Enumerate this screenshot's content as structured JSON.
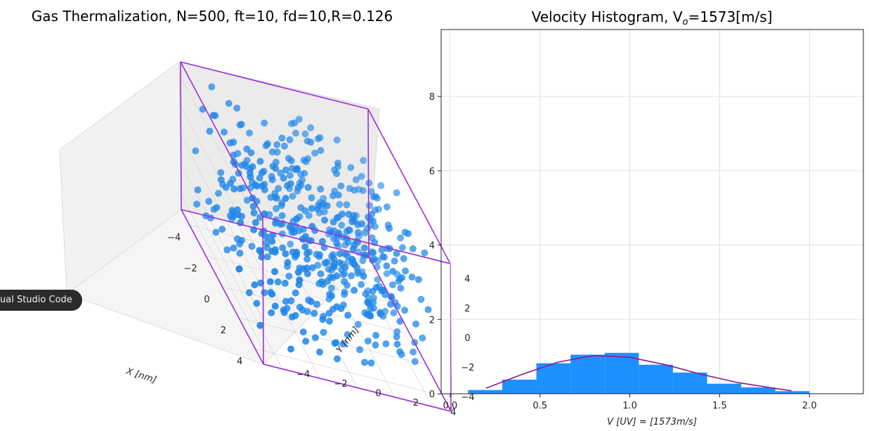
{
  "chart_data": [
    {
      "type": "scatter",
      "title": "Gas Thermalization, N=500, ft=10, fd=10,R=0.126",
      "xlabel": "X [nm]",
      "ylabel": "Y [nm]",
      "zlabel": "",
      "xlim": [
        -5,
        5
      ],
      "ylim": [
        -5,
        5
      ],
      "zlim": [
        -5,
        5
      ],
      "x_ticks": [
        "−4",
        "−2",
        "0",
        "2",
        "4"
      ],
      "y_ticks": [
        "−4",
        "−2",
        "0",
        "2",
        "4"
      ],
      "z_ticks": [
        "4",
        "2",
        "0",
        "−2",
        "−4"
      ],
      "n_points": 500,
      "point_color": "#1f77b4",
      "box_color": "#9b30d9"
    },
    {
      "type": "bar",
      "title": "Velocity Histogram, V",
      "title_sub": "o",
      "title_tail": "=1573[m/s]",
      "xlabel": "V [UV] = [1573m/s]",
      "ylabel": "",
      "xlim": [
        -0.05,
        2.3
      ],
      "ylim": [
        0,
        9.8
      ],
      "x_ticks": [
        0.0,
        0.5,
        1.0,
        1.5,
        2.0
      ],
      "x_tick_labels": [
        "0.0",
        "0.5",
        "1.0",
        "1.5",
        "2.0"
      ],
      "y_ticks": [
        0,
        2,
        4,
        6,
        8
      ],
      "y_tick_labels": [
        "0",
        "2",
        "4",
        "6",
        "8"
      ],
      "grid": true,
      "bar_color": "#1e90ff",
      "bins": [
        {
          "x0": 0.1,
          "x1": 0.29,
          "value": 0.1
        },
        {
          "x0": 0.29,
          "x1": 0.48,
          "value": 0.38
        },
        {
          "x0": 0.48,
          "x1": 0.67,
          "value": 0.82
        },
        {
          "x0": 0.67,
          "x1": 0.86,
          "value": 1.05
        },
        {
          "x0": 0.86,
          "x1": 1.05,
          "value": 1.1
        },
        {
          "x0": 1.05,
          "x1": 1.24,
          "value": 0.78
        },
        {
          "x0": 1.24,
          "x1": 1.43,
          "value": 0.57
        },
        {
          "x0": 1.43,
          "x1": 1.62,
          "value": 0.27
        },
        {
          "x0": 1.62,
          "x1": 1.81,
          "value": 0.17
        },
        {
          "x0": 1.81,
          "x1": 2.0,
          "value": 0.07
        }
      ],
      "curve": {
        "name": "",
        "color": "#8b1a8b",
        "x": [
          0.2,
          0.4,
          0.6,
          0.8,
          1.0,
          1.2,
          1.4,
          1.6,
          1.8,
          1.9
        ],
        "y": [
          0.15,
          0.52,
          0.85,
          1.03,
          0.98,
          0.78,
          0.52,
          0.3,
          0.15,
          0.08
        ]
      }
    }
  ],
  "tooltip": {
    "label": "ual Studio Code"
  }
}
